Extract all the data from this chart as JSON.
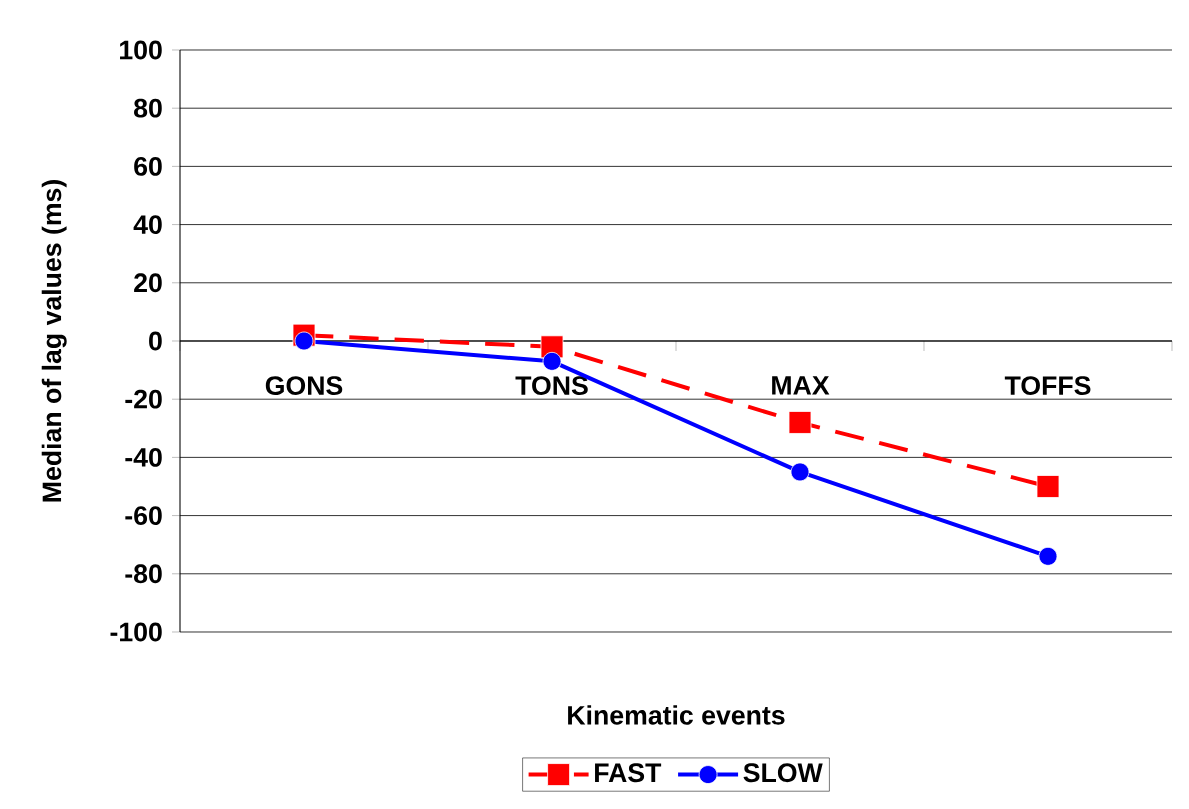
{
  "chart_data": {
    "type": "line",
    "xlabel": "Kinematic events",
    "ylabel": "Median of lag values (ms)",
    "categories": [
      "GONS",
      "TONS",
      "MAX",
      "TOFFS"
    ],
    "ylim": [
      -100,
      100
    ],
    "yticks": [
      -100,
      -80,
      -60,
      -40,
      -20,
      0,
      20,
      40,
      60,
      80,
      100
    ],
    "grid": "y",
    "legend": "bottom",
    "series": [
      {
        "name": "FAST",
        "color": "#ff0000",
        "marker": "square",
        "line_style": "dashed",
        "values": [
          2,
          -2,
          -28,
          -50
        ]
      },
      {
        "name": "SLOW",
        "color": "#0000ff",
        "marker": "circle",
        "line_style": "solid",
        "values": [
          0,
          -7,
          -45,
          -74
        ]
      }
    ]
  }
}
